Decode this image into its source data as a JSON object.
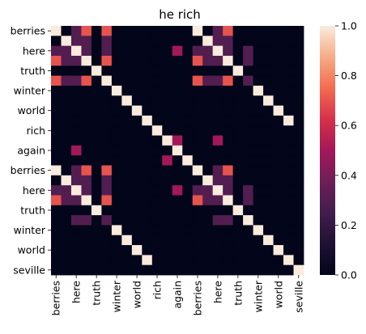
{
  "chart_data": {
    "type": "heatmap",
    "title": "he rich",
    "xlabel": "",
    "ylabel": "",
    "row_labels": [
      "berries",
      "",
      "here",
      "",
      "truth",
      "",
      "winter",
      "",
      "world",
      "",
      "rich",
      "",
      "again",
      "",
      "berries",
      "",
      "here",
      "",
      "truth",
      "",
      "winter",
      "",
      "world",
      "",
      "seville"
    ],
    "col_labels": [
      "berries",
      "",
      "here",
      "",
      "truth",
      "",
      "winter",
      "",
      "world",
      "",
      "rich",
      "",
      "again",
      "",
      "berries",
      "",
      "here",
      "",
      "truth",
      "",
      "winter",
      "",
      "world",
      "",
      "seville"
    ],
    "values": [
      [
        1,
        0,
        0.3,
        0.7,
        0,
        0.7,
        0,
        0,
        0,
        0,
        0,
        0,
        0,
        0,
        1,
        0,
        0.3,
        0.7,
        0,
        0,
        0,
        0,
        0,
        0,
        0
      ],
      [
        0,
        1,
        0.3,
        0.3,
        0,
        0.3,
        0,
        0,
        0,
        0,
        0,
        0,
        0,
        0,
        0,
        1,
        0.3,
        0.3,
        0,
        0,
        0,
        0,
        0,
        0,
        0
      ],
      [
        0.3,
        0.3,
        1,
        0.3,
        0,
        0.3,
        0,
        0,
        0,
        0,
        0,
        0,
        0.5,
        0,
        0.3,
        0.3,
        1,
        0.3,
        0,
        0.3,
        0,
        0,
        0,
        0,
        0
      ],
      [
        0.7,
        0.3,
        0.3,
        1,
        0,
        0.7,
        0,
        0,
        0,
        0,
        0,
        0,
        0,
        0,
        0.7,
        0.3,
        0.3,
        1,
        0,
        0.3,
        0,
        0,
        0,
        0,
        0
      ],
      [
        0,
        0,
        0,
        0,
        1,
        0,
        0,
        0,
        0,
        0,
        0,
        0,
        0,
        0,
        0,
        0,
        0,
        0,
        1,
        0,
        0,
        0,
        0,
        0,
        0
      ],
      [
        0.7,
        0.3,
        0.3,
        0.7,
        0,
        1,
        0,
        0,
        0,
        0,
        0,
        0,
        0,
        0,
        0.7,
        0.3,
        0.3,
        0.7,
        0,
        0.3,
        0,
        0,
        0,
        0,
        0
      ],
      [
        0,
        0,
        0,
        0,
        0,
        0,
        1,
        0,
        0,
        0,
        0,
        0,
        0,
        0,
        0,
        0,
        0,
        0,
        0,
        0,
        1,
        0,
        0,
        0,
        0
      ],
      [
        0,
        0,
        0,
        0,
        0,
        0,
        0,
        1,
        0,
        0,
        0,
        0,
        0,
        0,
        0,
        0,
        0,
        0,
        0,
        0,
        0,
        1,
        0,
        0,
        0
      ],
      [
        0,
        0,
        0,
        0,
        0,
        0,
        0,
        0,
        1,
        0,
        0,
        0,
        0,
        0,
        0,
        0,
        0,
        0,
        0,
        0,
        0,
        0,
        1,
        0,
        0
      ],
      [
        0,
        0,
        0,
        0,
        0,
        0,
        0,
        0,
        0,
        1,
        0,
        0,
        0,
        0,
        0,
        0,
        0,
        0,
        0,
        0,
        0,
        0,
        0,
        1,
        0
      ],
      [
        0,
        0,
        0,
        0,
        0,
        0,
        0,
        0,
        0,
        0,
        1,
        0,
        0,
        0,
        0,
        0,
        0,
        0,
        0,
        0,
        0,
        0,
        0,
        0,
        0
      ],
      [
        0,
        0,
        0,
        0,
        0,
        0,
        0,
        0,
        0,
        0,
        0,
        1,
        0.5,
        0,
        0,
        0,
        0.5,
        0,
        0,
        0,
        0,
        0,
        0,
        0,
        0
      ],
      [
        0,
        0,
        0.5,
        0,
        0,
        0,
        0,
        0,
        0,
        0,
        0,
        0,
        1,
        0,
        0,
        0,
        0,
        0,
        0,
        0,
        0,
        0,
        0,
        0,
        0
      ],
      [
        0,
        0,
        0,
        0,
        0,
        0,
        0,
        0,
        0,
        0,
        0,
        0.5,
        0,
        1,
        0,
        0,
        0,
        0,
        0,
        0,
        0,
        0,
        0,
        0,
        0
      ],
      [
        1,
        0,
        0.3,
        0.7,
        0,
        0.7,
        0,
        0,
        0,
        0,
        0,
        0,
        0,
        0,
        1,
        0,
        0.3,
        0.7,
        0,
        0,
        0,
        0,
        0,
        0,
        0
      ],
      [
        0,
        1,
        0.3,
        0.3,
        0,
        0.3,
        0,
        0,
        0,
        0,
        0,
        0,
        0,
        0,
        0,
        1,
        0.3,
        0.3,
        0,
        0,
        0,
        0,
        0,
        0,
        0
      ],
      [
        0.3,
        0.3,
        1,
        0.3,
        0,
        0.3,
        0,
        0,
        0,
        0,
        0,
        0,
        0.5,
        0,
        0.3,
        0.3,
        1,
        0.3,
        0,
        0.3,
        0,
        0,
        0,
        0,
        0
      ],
      [
        0.7,
        0.3,
        0.3,
        1,
        0,
        0.7,
        0,
        0,
        0,
        0,
        0,
        0,
        0,
        0,
        0.7,
        0.3,
        0.3,
        1,
        0,
        0.3,
        0,
        0,
        0,
        0,
        0
      ],
      [
        0,
        0,
        0,
        0,
        1,
        0,
        0,
        0,
        0,
        0,
        0,
        0,
        0,
        0,
        0,
        0,
        0,
        0,
        1,
        0,
        0,
        0,
        0,
        0,
        0
      ],
      [
        0,
        0,
        0.3,
        0.3,
        0,
        0.3,
        0,
        0,
        0,
        0,
        0,
        0,
        0,
        0,
        0,
        0,
        0.3,
        0.3,
        0,
        1,
        0,
        0,
        0,
        0,
        0
      ],
      [
        0,
        0,
        0,
        0,
        0,
        0,
        1,
        0,
        0,
        0,
        0,
        0,
        0,
        0,
        0,
        0,
        0,
        0,
        0,
        0,
        1,
        0,
        0,
        0,
        0
      ],
      [
        0,
        0,
        0,
        0,
        0,
        0,
        0,
        1,
        0,
        0,
        0,
        0,
        0,
        0,
        0,
        0,
        0,
        0,
        0,
        0,
        0,
        1,
        0,
        0,
        0
      ],
      [
        0,
        0,
        0,
        0,
        0,
        0,
        0,
        0,
        1,
        0,
        0,
        0,
        0,
        0,
        0,
        0,
        0,
        0,
        0,
        0,
        0,
        0,
        1,
        0,
        0
      ],
      [
        0,
        0,
        0,
        0,
        0,
        0,
        0,
        0,
        0,
        1,
        0,
        0,
        0,
        0,
        0,
        0,
        0,
        0,
        0,
        0,
        0,
        0,
        0,
        1,
        0
      ],
      [
        0,
        0,
        0,
        0,
        0,
        0,
        0,
        0,
        0,
        0,
        0,
        0,
        0,
        0,
        0,
        0,
        0,
        0,
        0,
        0,
        0,
        0,
        0,
        0,
        1
      ]
    ],
    "colorbar": {
      "min": 0.0,
      "max": 1.0,
      "ticks": [
        "0.0",
        "0.2",
        "0.4",
        "0.6",
        "0.8",
        "1.0"
      ],
      "colormap": "rocket"
    },
    "grid": false
  }
}
